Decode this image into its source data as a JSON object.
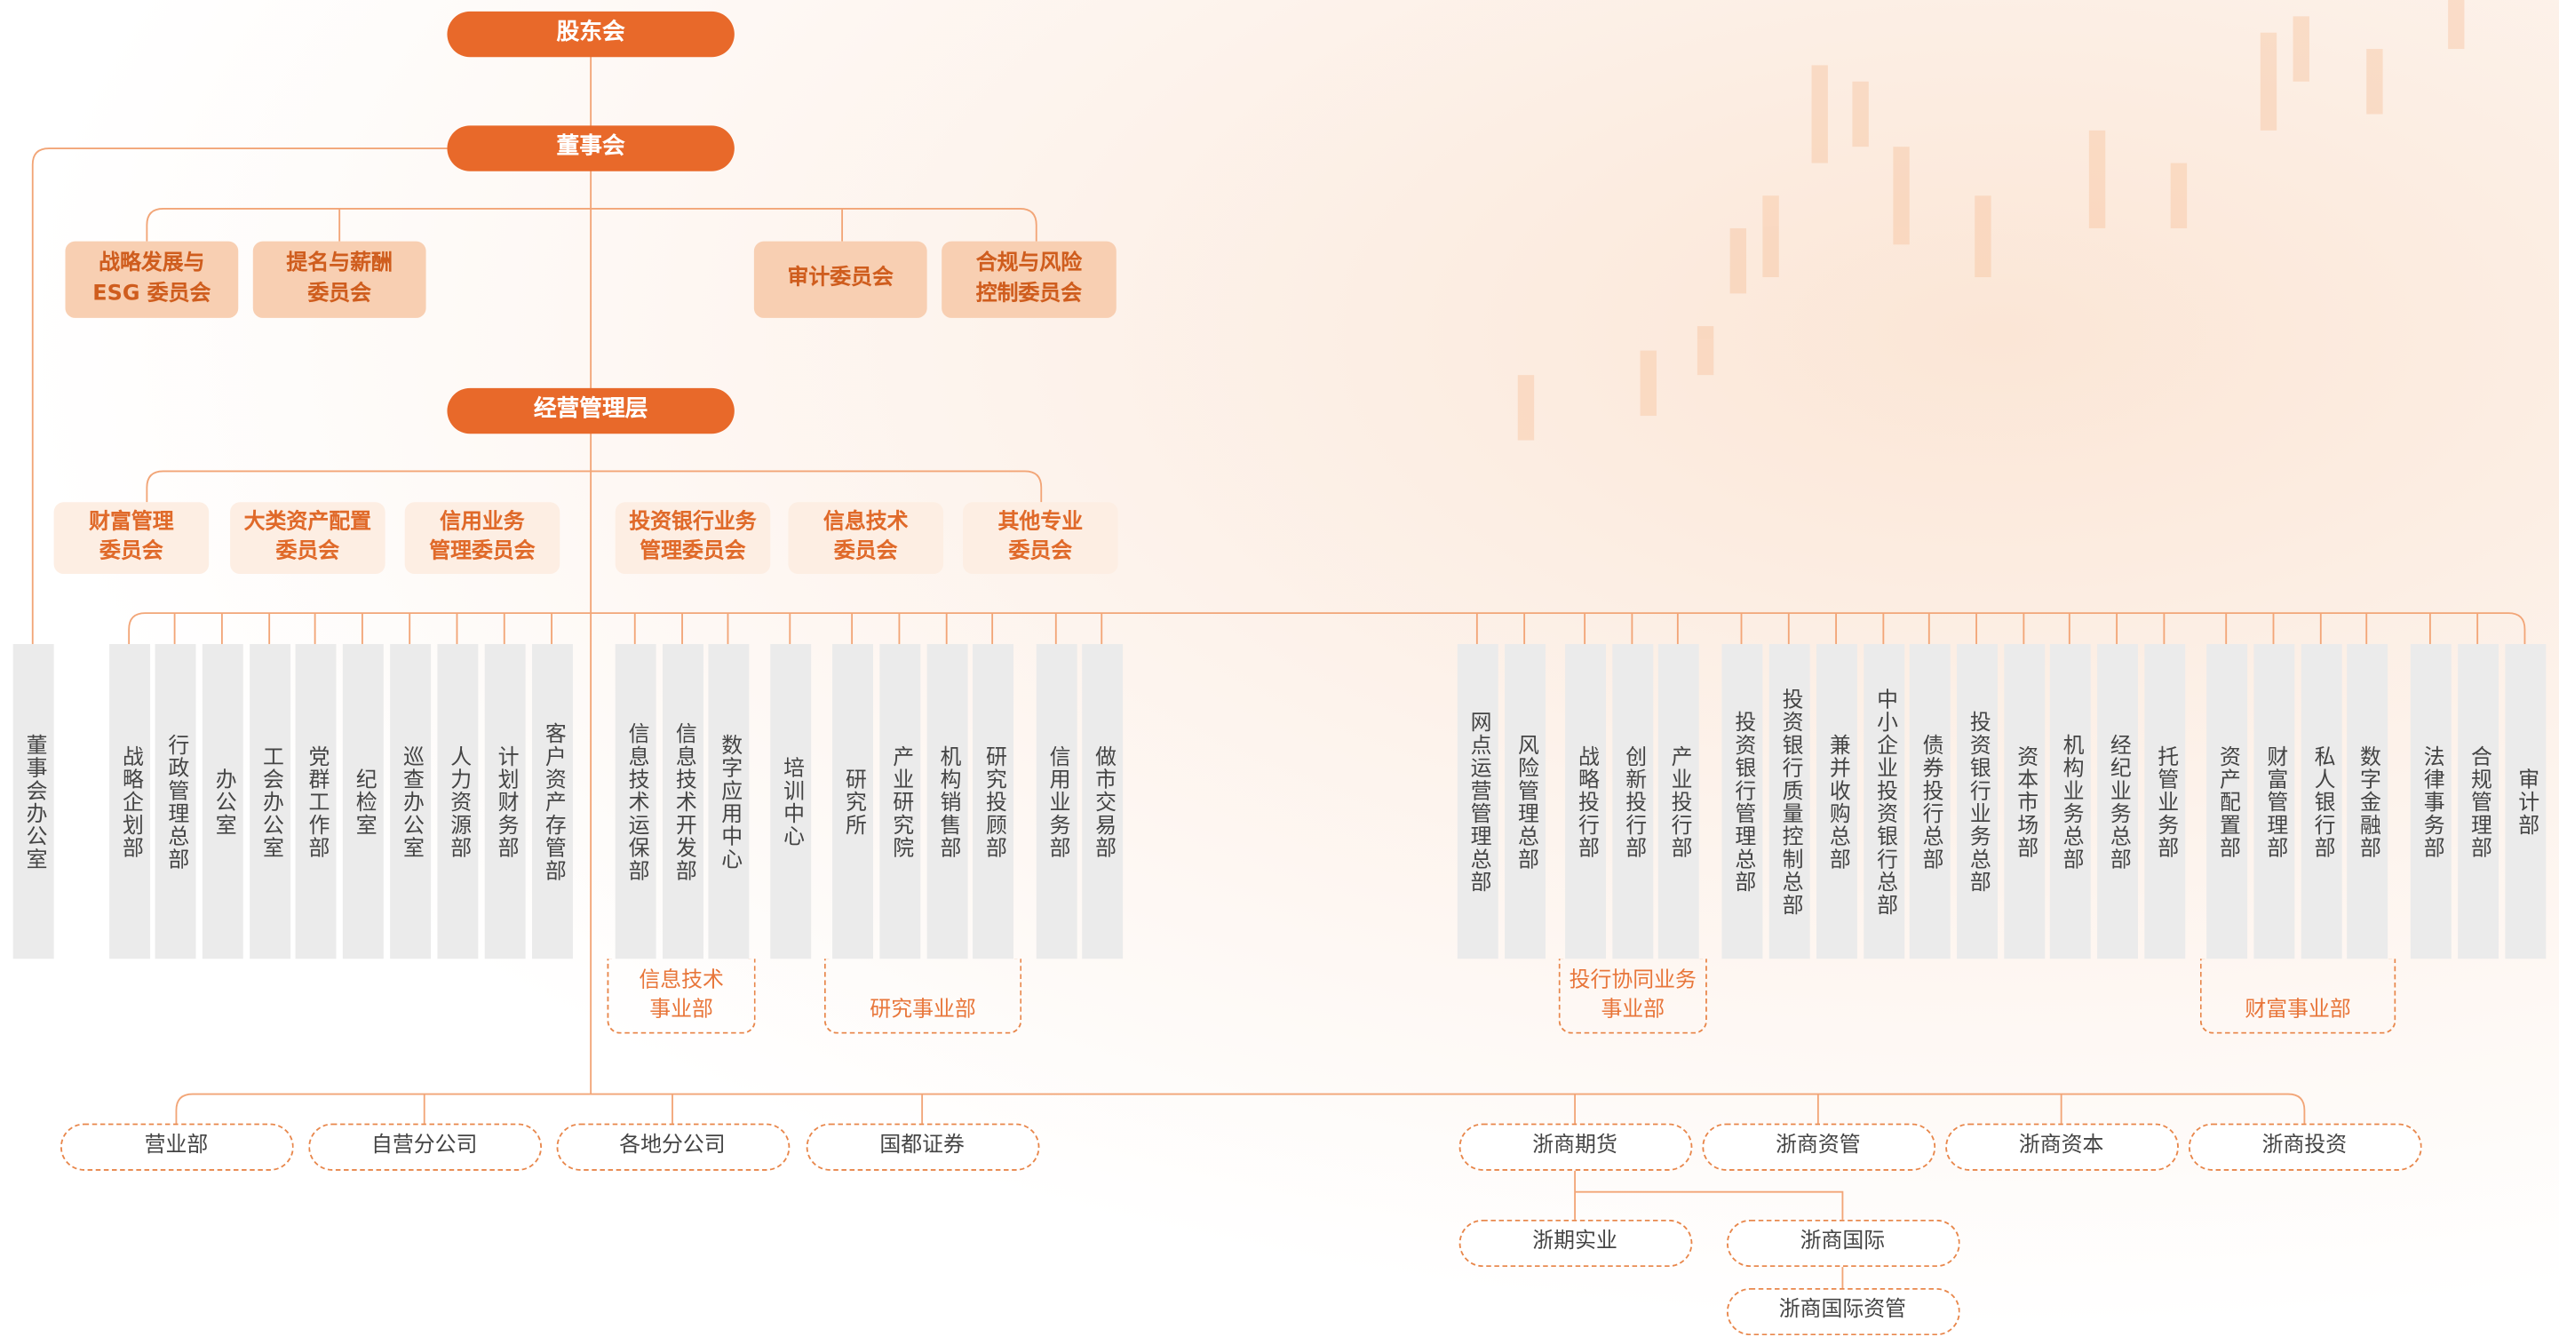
{
  "top": [
    "股东会",
    "董事会",
    "经营管理层"
  ],
  "board_committees": [
    [
      "战略发展与",
      "ESG 委员会"
    ],
    [
      "提名与薪酬",
      "委员会"
    ],
    [
      "审计委员会"
    ],
    [
      "合规与风险",
      "控制委员会"
    ]
  ],
  "management_committees": [
    [
      "财富管理",
      "委员会"
    ],
    [
      "大类资产配置",
      "委员会"
    ],
    [
      "信用业务",
      "管理委员会"
    ],
    [
      "投资银行业务",
      "管理委员会"
    ],
    [
      "信息技术",
      "委员会"
    ],
    [
      "其他专业",
      "委员会"
    ]
  ],
  "departments": [
    "董事会办公室",
    "战略企划部",
    "行政管理总部",
    "办公室",
    "工会办公室",
    "党群工作部",
    "纪检室",
    "巡查办公室",
    "人力资源部",
    "计划财务部",
    "客户资产存管部",
    "信息技术运保部",
    "信息技术开发部",
    "数字应用中心",
    "培训中心",
    "研究所",
    "产业研究院",
    "机构销售部",
    "研究投顾部",
    "信用业务部",
    "做市交易部",
    "网点运营管理总部",
    "风险管理总部",
    "战略投行部",
    "创新投行部",
    "产业投行部",
    "投资银行管理总部",
    "投资银行质量控制总部",
    "兼并收购总部",
    "中小企业投资银行总部",
    "债券投行总部",
    "投资银行业务总部",
    "资本市场部",
    "机构业务总部",
    "经纪业务总部",
    "托管业务部",
    "资产配置部",
    "财富管理部",
    "私人银行部",
    "数字金融部",
    "法律事务部",
    "合规管理部",
    "审计部"
  ],
  "department_groups": [
    [
      "信息技术",
      "事业部"
    ],
    [
      "研究事业部"
    ],
    [
      "投行协同业务",
      "事业部"
    ],
    [
      "财富事业部"
    ]
  ],
  "subsidiaries": [
    "营业部",
    "自营分公司",
    "各地分公司",
    "国都证券",
    "浙商期货",
    "浙商资管",
    "浙商资本",
    "浙商投资"
  ],
  "sub_subsidiaries": [
    "浙期实业",
    "浙商国际",
    "浙商国际资管"
  ]
}
